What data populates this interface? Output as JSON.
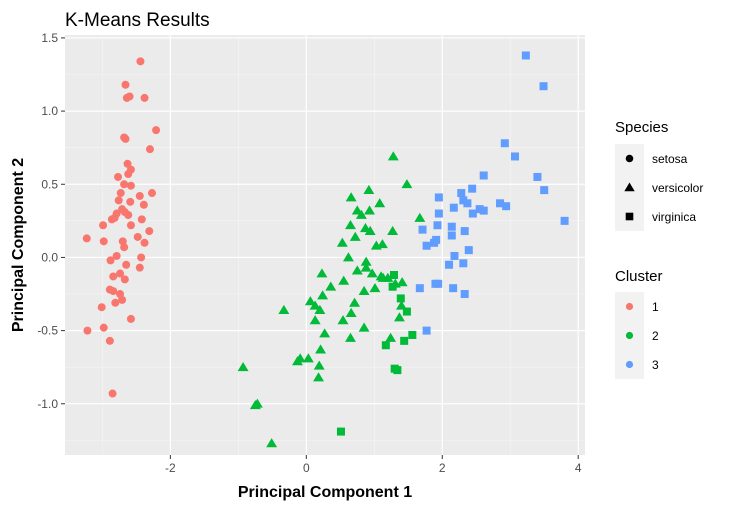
{
  "chart_data": {
    "type": "scatter",
    "title": "K-Means Results",
    "xlabel": "Principal Component 1",
    "ylabel": "Principal Component 2",
    "xlim": [
      -3.55,
      4.1
    ],
    "ylim": [
      -1.35,
      1.52
    ],
    "xticks": [
      -2,
      0,
      2,
      4
    ],
    "xtick_labels": [
      "-2",
      "0",
      "2",
      "4"
    ],
    "yticks": [
      -1.0,
      -0.5,
      0.0,
      0.5,
      1.0,
      1.5
    ],
    "ytick_labels": [
      "-1.0",
      "-0.5",
      "0.0",
      "0.5",
      "1.0",
      "1.5"
    ],
    "grid": true,
    "legend_position": "right",
    "legends": [
      {
        "title": "Species",
        "encoding": "shape",
        "entries": [
          {
            "label": "setosa",
            "shape": "circle"
          },
          {
            "label": "versicolor",
            "shape": "triangle"
          },
          {
            "label": "virginica",
            "shape": "square"
          }
        ]
      },
      {
        "title": "Cluster",
        "encoding": "color",
        "entries": [
          {
            "label": "1",
            "color": "#F8766D"
          },
          {
            "label": "2",
            "color": "#00BA38"
          },
          {
            "label": "3",
            "color": "#619CFF"
          }
        ]
      }
    ],
    "colors": {
      "1": "#F8766D",
      "2": "#00BA38",
      "3": "#619CFF"
    },
    "series": [
      {
        "species": "setosa",
        "cluster": "1",
        "shape": "circle",
        "points": [
          [
            -2.44,
            1.34
          ],
          [
            -2.66,
            1.18
          ],
          [
            -2.64,
            1.09
          ],
          [
            -2.38,
            1.09
          ],
          [
            -2.6,
            1.1
          ],
          [
            -2.21,
            0.87
          ],
          [
            -2.68,
            0.82
          ],
          [
            -2.66,
            0.81
          ],
          [
            -2.3,
            0.74
          ],
          [
            -2.63,
            0.64
          ],
          [
            -2.58,
            0.6
          ],
          [
            -2.77,
            0.55
          ],
          [
            -2.62,
            0.57
          ],
          [
            -2.68,
            0.5
          ],
          [
            -2.58,
            0.49
          ],
          [
            -2.73,
            0.44
          ],
          [
            -2.27,
            0.44
          ],
          [
            -2.45,
            0.42
          ],
          [
            -2.76,
            0.39
          ],
          [
            -2.59,
            0.38
          ],
          [
            -2.39,
            0.36
          ],
          [
            -2.71,
            0.33
          ],
          [
            -2.67,
            0.31
          ],
          [
            -2.79,
            0.3
          ],
          [
            -2.62,
            0.29
          ],
          [
            -2.82,
            0.27
          ],
          [
            -2.86,
            0.26
          ],
          [
            -2.42,
            0.26
          ],
          [
            -2.99,
            0.22
          ],
          [
            -2.58,
            0.22
          ],
          [
            -2.31,
            0.18
          ],
          [
            -2.48,
            0.14
          ],
          [
            -3.23,
            0.13
          ],
          [
            -2.7,
            0.11
          ],
          [
            -2.38,
            0.1
          ],
          [
            -2.98,
            0.11
          ],
          [
            -2.68,
            0.07
          ],
          [
            -2.79,
            0.01
          ],
          [
            -2.43,
            0.0
          ],
          [
            -2.88,
            -0.02
          ],
          [
            -2.65,
            -0.05
          ],
          [
            -2.45,
            -0.07
          ],
          [
            -2.74,
            -0.11
          ],
          [
            -2.84,
            -0.13
          ],
          [
            -2.67,
            -0.15
          ],
          [
            -2.89,
            -0.22
          ],
          [
            -2.84,
            -0.23
          ],
          [
            -2.74,
            -0.25
          ],
          [
            -2.71,
            -0.29
          ],
          [
            -2.81,
            -0.31
          ],
          [
            -3.01,
            -0.34
          ],
          [
            -2.58,
            -0.42
          ],
          [
            -2.98,
            -0.48
          ],
          [
            -3.22,
            -0.5
          ],
          [
            -2.89,
            -0.57
          ],
          [
            -2.85,
            -0.93
          ]
        ]
      },
      {
        "species": "versicolor",
        "cluster": "2",
        "shape": "triangle",
        "points": [
          [
            1.28,
            0.69
          ],
          [
            0.93,
            0.32
          ],
          [
            0.92,
            0.46
          ],
          [
            0.75,
            0.32
          ],
          [
            1.08,
            0.37
          ],
          [
            0.66,
            0.41
          ],
          [
            0.81,
            0.29
          ],
          [
            0.65,
            0.22
          ],
          [
            0.87,
            0.2
          ],
          [
            1.27,
            0.18
          ],
          [
            0.94,
            0.18
          ],
          [
            0.72,
            0.14
          ],
          [
            1.12,
            0.09
          ],
          [
            0.53,
            0.1
          ],
          [
            1.03,
            0.08
          ],
          [
            0.62,
            0.0
          ],
          [
            0.88,
            -0.03
          ],
          [
            0.88,
            -0.07
          ],
          [
            0.75,
            -0.09
          ],
          [
            1.1,
            -0.13
          ],
          [
            0.97,
            -0.11
          ],
          [
            1.2,
            -0.14
          ],
          [
            1.13,
            -0.14
          ],
          [
            0.23,
            -0.11
          ],
          [
            1.31,
            -0.18
          ],
          [
            0.55,
            -0.16
          ],
          [
            0.36,
            -0.2
          ],
          [
            1.01,
            -0.21
          ],
          [
            0.85,
            -0.23
          ],
          [
            0.24,
            -0.26
          ],
          [
            1.41,
            -0.17
          ],
          [
            0.06,
            -0.3
          ],
          [
            0.71,
            -0.31
          ],
          [
            0.13,
            -0.33
          ],
          [
            1.4,
            -0.33
          ],
          [
            0.2,
            -0.36
          ],
          [
            0.66,
            -0.38
          ],
          [
            0.54,
            -0.43
          ],
          [
            0.13,
            -0.43
          ],
          [
            1.37,
            -0.41
          ],
          [
            0.85,
            -0.48
          ],
          [
            1.24,
            -0.55
          ],
          [
            0.27,
            -0.52
          ],
          [
            0.65,
            -0.55
          ],
          [
            0.21,
            -0.63
          ],
          [
            0.03,
            -0.69
          ],
          [
            -0.09,
            -0.69
          ],
          [
            -0.13,
            -0.71
          ],
          [
            0.19,
            -0.74
          ],
          [
            0.18,
            -0.82
          ],
          [
            -0.93,
            -0.75
          ],
          [
            -0.72,
            -1.0
          ],
          [
            -0.75,
            -1.01
          ],
          [
            -0.51,
            -1.27
          ],
          [
            -0.33,
            -0.36
          ],
          [
            1.67,
            0.27
          ],
          [
            1.48,
            0.5
          ]
        ]
      },
      {
        "species": "virginica",
        "cluster": "2",
        "shape": "square",
        "points": [
          [
            1.29,
            -0.12
          ],
          [
            1.27,
            -0.2
          ],
          [
            1.39,
            -0.28
          ],
          [
            1.48,
            -0.37
          ],
          [
            1.44,
            -0.57
          ],
          [
            1.56,
            -0.53
          ],
          [
            1.17,
            -0.6
          ],
          [
            1.3,
            -0.76
          ],
          [
            1.34,
            -0.77
          ],
          [
            0.51,
            -1.19
          ]
        ]
      },
      {
        "species": "virginica",
        "cluster": "3",
        "shape": "square",
        "points": [
          [
            3.23,
            1.38
          ],
          [
            3.49,
            1.17
          ],
          [
            2.92,
            0.78
          ],
          [
            3.07,
            0.69
          ],
          [
            3.4,
            0.55
          ],
          [
            3.5,
            0.46
          ],
          [
            2.61,
            0.56
          ],
          [
            2.44,
            0.47
          ],
          [
            2.28,
            0.44
          ],
          [
            1.95,
            0.41
          ],
          [
            2.31,
            0.39
          ],
          [
            2.37,
            0.37
          ],
          [
            2.85,
            0.37
          ],
          [
            2.94,
            0.35
          ],
          [
            2.17,
            0.34
          ],
          [
            2.55,
            0.33
          ],
          [
            2.61,
            0.32
          ],
          [
            2.45,
            0.3
          ],
          [
            1.95,
            0.3
          ],
          [
            1.93,
            0.22
          ],
          [
            2.14,
            0.21
          ],
          [
            3.8,
            0.25
          ],
          [
            1.71,
            0.19
          ],
          [
            2.33,
            0.18
          ],
          [
            2.14,
            0.15
          ],
          [
            1.91,
            0.12
          ],
          [
            1.88,
            0.1
          ],
          [
            1.77,
            0.08
          ],
          [
            2.39,
            0.05
          ],
          [
            2.18,
            0.01
          ],
          [
            2.31,
            -0.04
          ],
          [
            2.1,
            -0.05
          ],
          [
            1.94,
            -0.18
          ],
          [
            1.67,
            -0.21
          ],
          [
            2.16,
            -0.21
          ],
          [
            1.9,
            -0.18
          ],
          [
            2.33,
            -0.25
          ],
          [
            1.77,
            -0.5
          ]
        ]
      }
    ]
  }
}
